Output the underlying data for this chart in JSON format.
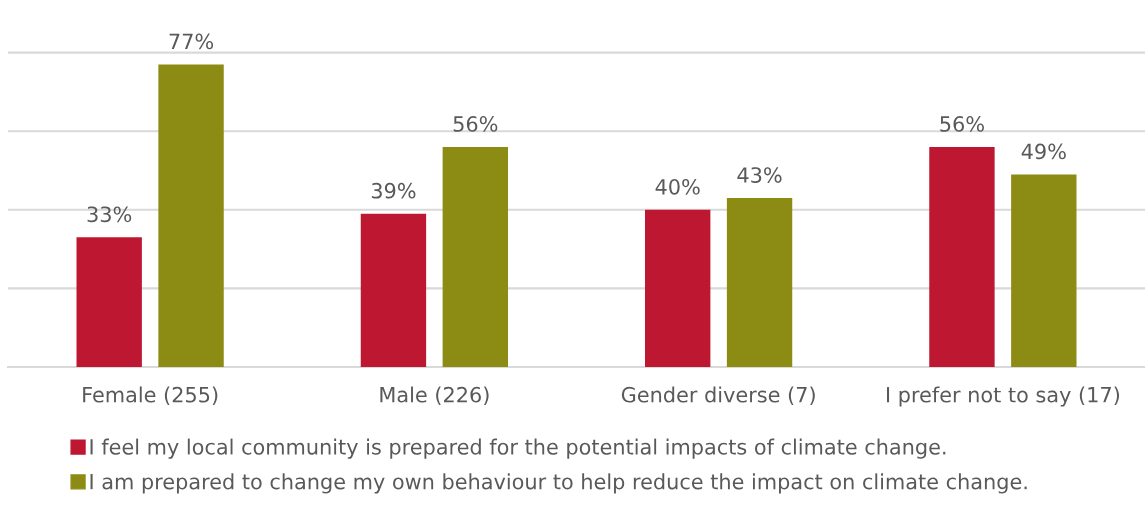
{
  "chart_data": {
    "type": "bar",
    "categories": [
      "Female (255)",
      "Male (226)",
      "Gender diverse (7)",
      "I prefer not to say (17)"
    ],
    "series": [
      {
        "name": "I feel my local community is prepared for the potential impacts of climate change.",
        "color": "#be1731",
        "values": [
          33,
          39,
          40,
          56
        ],
        "value_labels": [
          "33%",
          "39%",
          "40%",
          "56%"
        ]
      },
      {
        "name": "I am prepared to change my own behaviour to help reduce the impact on climate change.",
        "color": "#8c8c14",
        "values": [
          77,
          56,
          43,
          49
        ],
        "value_labels": [
          "77%",
          "56%",
          "43%",
          "49%"
        ]
      }
    ],
    "grid": "y",
    "legend": "bottom",
    "marker": "square",
    "tick_labels": "x"
  }
}
